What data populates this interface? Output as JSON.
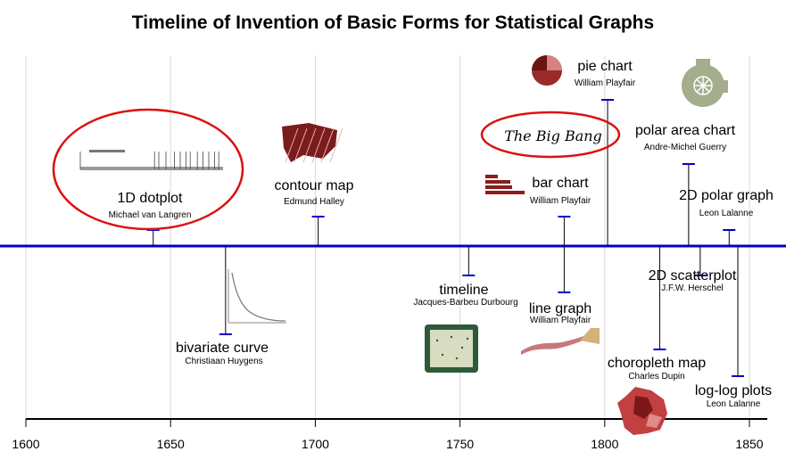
{
  "chart_data": {
    "type": "timeline",
    "title": "Timeline of Invention of Basic Forms for Statistical Graphs",
    "xlim": [
      1600,
      1860
    ],
    "x_ticks": [
      1600,
      1650,
      1700,
      1750,
      1800,
      1850
    ],
    "grid": true,
    "events": [
      {
        "name": "1D dotplot",
        "person": "Michael van Langren",
        "year": 1644,
        "side": "above",
        "level": 1,
        "icon": "dotplot-scale-icon",
        "highlight": true
      },
      {
        "name": "bivariate curve",
        "person": "Christiaan Huygens",
        "year": 1669,
        "side": "below",
        "level": 3,
        "icon": "decay-curve-icon"
      },
      {
        "name": "contour map",
        "person": "Edmund Halley",
        "year": 1701,
        "side": "above",
        "level": 2,
        "icon": "contour-map-icon"
      },
      {
        "name": "timeline",
        "person": "Jacques-Barbeu Durbourg",
        "year": 1753,
        "side": "below",
        "level": 1,
        "icon": "timeline-board-icon"
      },
      {
        "name": "line graph",
        "person": "William Playfair",
        "year": 1786,
        "side": "below",
        "level": 2,
        "icon": "line-graph-icon"
      },
      {
        "name": "bar chart",
        "person": "William Playfair",
        "year": 1786,
        "side": "above",
        "level": 2,
        "icon": "bar-chart-icon"
      },
      {
        "name": "pie chart",
        "person": "William Playfair",
        "year": 1801,
        "side": "above",
        "level": 5,
        "icon": "pie-chart-icon"
      },
      {
        "name": "choropleth map",
        "person": "Charles Dupin",
        "year": 1819,
        "side": "below",
        "level": 4,
        "icon": "france-map-icon"
      },
      {
        "name": "polar area chart",
        "person": "Andre-Michel Guerry",
        "year": 1829,
        "side": "above",
        "level": 4,
        "icon": "polar-area-icon"
      },
      {
        "name": "2D scatterplot",
        "person": "J.F.W. Herschel",
        "year": 1833,
        "side": "below",
        "level": 1,
        "icon": null
      },
      {
        "name": "2D polar graph",
        "person": "Leon Lalanne",
        "year": 1843,
        "side": "above",
        "level": 1,
        "icon": null
      },
      {
        "name": "log-log plots",
        "person": "Leon Lalanne",
        "year": 1846,
        "side": "below",
        "level": 5,
        "icon": null
      }
    ],
    "annotations": [
      {
        "text": "The Big Bang",
        "near": "bar chart / pie chart",
        "style": "red-ellipse"
      }
    ],
    "colors": {
      "timeline": "#0000cc",
      "highlight": "#dd1111",
      "stem": "#000000",
      "grid": "#d9d9d9"
    }
  }
}
